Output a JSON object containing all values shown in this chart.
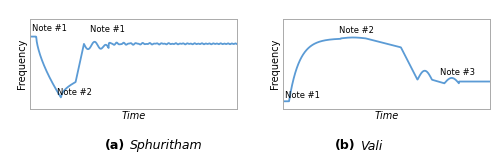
{
  "line_color": "#5b9bd5",
  "line_width": 1.3,
  "ylabel": "Frequency",
  "xlabel": "Time",
  "caption_a": "(a)",
  "caption_a_italic": "Sphuritham",
  "caption_b": "(b)",
  "caption_b_italic": "Vali",
  "note1_a_left": "Note #1",
  "note1_a_mid": "Note #1",
  "note2_a": "Note #2",
  "note1_b": "Note #1",
  "note2_b": "Note #2",
  "note3_b": "Note #3",
  "spine_color": "#aaaaaa",
  "tick_color": "#aaaaaa"
}
